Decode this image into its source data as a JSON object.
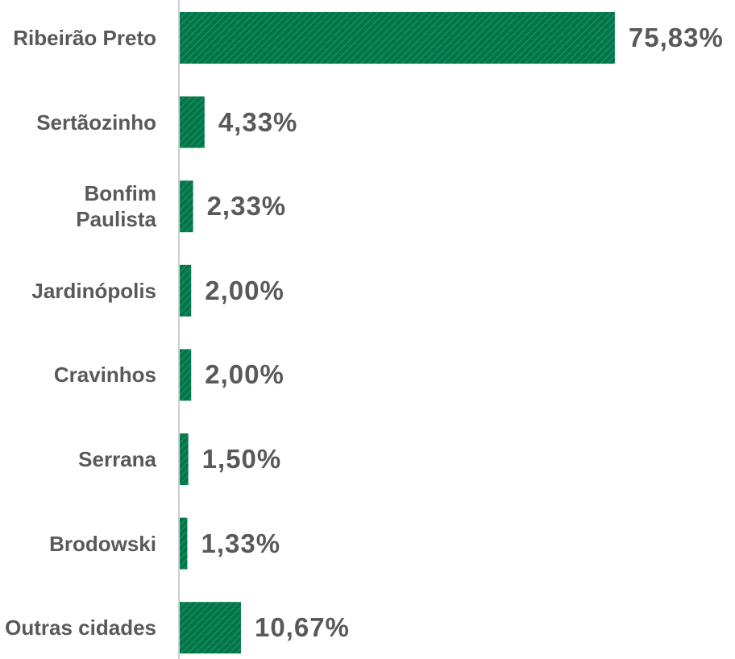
{
  "chart_data": {
    "type": "bar",
    "orientation": "horizontal",
    "categories": [
      "Ribeirão Preto",
      "Sertãozinho",
      "Bonfim Paulista",
      "Jardinópolis",
      "Cravinhos",
      "Serrana",
      "Brodowski",
      "Outras cidades"
    ],
    "values": [
      75.83,
      4.33,
      2.33,
      2.0,
      2.0,
      1.5,
      1.33,
      10.67
    ],
    "value_labels": [
      "75,83%",
      "4,33%",
      "2,33%",
      "2,00%",
      "2,00%",
      "1,50%",
      "1,33%",
      "10,67%"
    ],
    "color": "#00774a"
  }
}
